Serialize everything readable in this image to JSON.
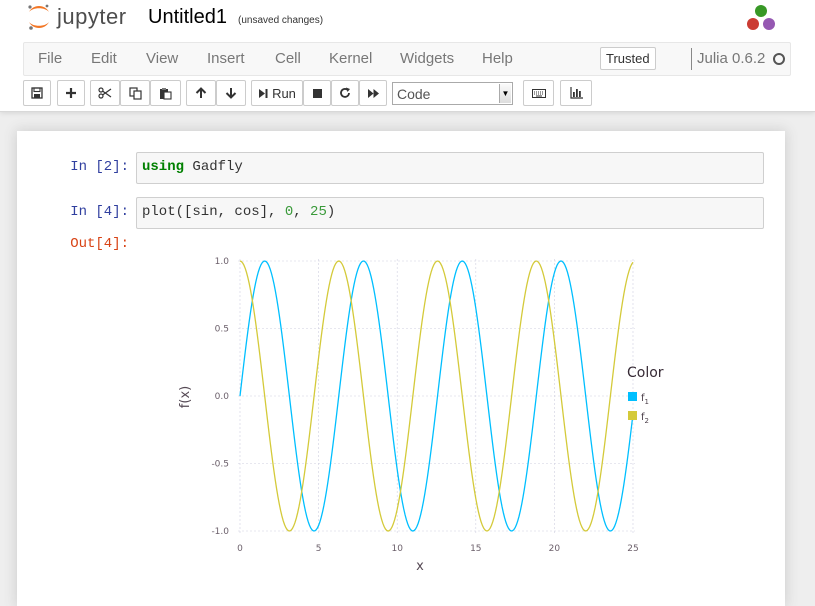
{
  "app": {
    "brand": "jupyter",
    "notebook_title": "Untitled1",
    "save_status": "(unsaved changes)"
  },
  "menu": {
    "items": [
      "File",
      "Edit",
      "View",
      "Insert",
      "Cell",
      "Kernel",
      "Widgets",
      "Help"
    ],
    "trusted_label": "Trusted",
    "kernel_name": "Julia 0.6.2"
  },
  "toolbar": {
    "buttons": [
      "save-icon",
      "plus-icon",
      "cut-icon",
      "copy-icon",
      "paste-icon",
      "arrow-up-icon",
      "arrow-down-icon",
      "step-forward-icon",
      "stop-icon",
      "refresh-icon",
      "fast-forward-icon",
      "keyboard-icon",
      "bar-chart-icon"
    ],
    "run_label": "Run",
    "cell_type": "Code"
  },
  "cells": [
    {
      "prompt": "In [2]:",
      "code_keyword": "using",
      "code_rest": " Gadfly"
    },
    {
      "prompt": "In [4]:",
      "code_fn": "plot([sin, cos], ",
      "code_arg1": "0",
      "code_sep": ", ",
      "code_arg2": "25",
      "code_end": ")"
    },
    {
      "prompt": "Out[4]:"
    }
  ],
  "chart_data": {
    "type": "line",
    "xlabel": "x",
    "ylabel": "f(x)",
    "xlim": [
      0,
      25
    ],
    "ylim": [
      -1.0,
      1.0
    ],
    "x_ticks": [
      0,
      5,
      10,
      15,
      20,
      25
    ],
    "y_ticks": [
      1.0,
      0.5,
      0.0,
      -0.5,
      -1.0
    ],
    "x_tick_labels": [
      "0",
      "5",
      "10",
      "15",
      "20",
      "25"
    ],
    "y_tick_labels": [
      "1.0",
      "0.5",
      "0.0",
      "-0.5",
      "-1.0"
    ],
    "grid": true,
    "legend": {
      "title": "Color",
      "position": "right"
    },
    "series": [
      {
        "name": "f",
        "subscript": "1",
        "function": "sin",
        "color": "#00bfff",
        "x_range": [
          0,
          25
        ],
        "samples": 201
      },
      {
        "name": "f",
        "subscript": "2",
        "function": "cos",
        "color": "#d4ca3a",
        "x_range": [
          0,
          25
        ],
        "samples": 201
      }
    ]
  },
  "colors": {
    "prompt_in": "#303f9f",
    "prompt_out": "#d84315",
    "logo_orange": "#f37726",
    "kernel_red": "#cb3c33",
    "kernel_green": "#389826",
    "kernel_purple": "#9558b2"
  }
}
